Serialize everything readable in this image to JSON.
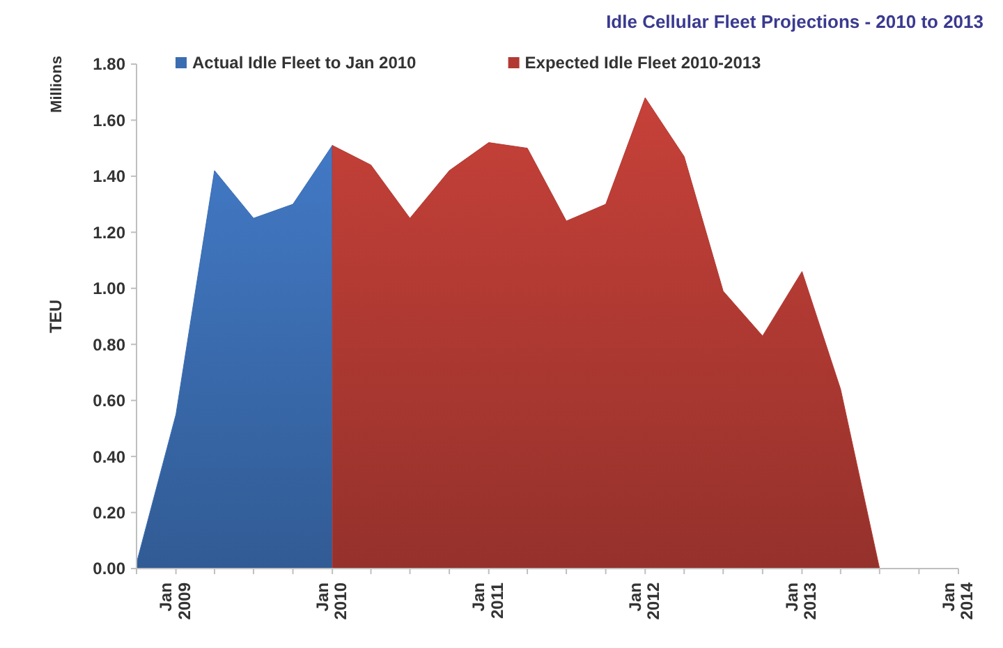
{
  "chart_data": {
    "type": "area",
    "title": "Idle Cellular Fleet Projections - 2010 to 2013",
    "ylabel": "TEU",
    "annotations": [
      "Millions"
    ],
    "series": [
      {
        "name": "Actual Idle Fleet to Jan 2010",
        "color": "#3b6db1",
        "x": [
          "2008-10",
          "2009-01",
          "2009-04",
          "2009-07",
          "2009-10",
          "2010-01"
        ],
        "values": [
          0.02,
          0.55,
          1.42,
          1.25,
          1.3,
          1.51
        ]
      },
      {
        "name": "Expected Idle Fleet 2010-2013",
        "color": "#b23a33",
        "x": [
          "2010-01",
          "2010-04",
          "2010-07",
          "2010-10",
          "2011-01",
          "2011-04",
          "2011-07",
          "2011-10",
          "2012-01",
          "2012-04",
          "2012-07",
          "2012-10",
          "2013-01",
          "2013-04",
          "2013-07"
        ],
        "values": [
          1.51,
          1.44,
          1.25,
          1.42,
          1.52,
          1.5,
          1.24,
          1.3,
          1.68,
          1.47,
          0.99,
          0.83,
          1.06,
          0.64,
          0.0
        ]
      }
    ],
    "xlim": [
      "2008-10",
      "2014-01"
    ],
    "xticks": [
      {
        "value": "2008-10",
        "label": null
      },
      {
        "value": "2009-01",
        "label": "Jan 2009"
      },
      {
        "value": "2009-04",
        "label": null
      },
      {
        "value": "2009-07",
        "label": null
      },
      {
        "value": "2009-10",
        "label": null
      },
      {
        "value": "2010-01",
        "label": "Jan 2010"
      },
      {
        "value": "2010-04",
        "label": null
      },
      {
        "value": "2010-07",
        "label": null
      },
      {
        "value": "2010-10",
        "label": null
      },
      {
        "value": "2011-01",
        "label": "Jan 2011"
      },
      {
        "value": "2011-04",
        "label": null
      },
      {
        "value": "2011-07",
        "label": null
      },
      {
        "value": "2011-10",
        "label": null
      },
      {
        "value": "2012-01",
        "label": "Jan 2012"
      },
      {
        "value": "2012-04",
        "label": null
      },
      {
        "value": "2012-07",
        "label": null
      },
      {
        "value": "2012-10",
        "label": null
      },
      {
        "value": "2013-01",
        "label": "Jan 2013"
      },
      {
        "value": "2013-04",
        "label": null
      },
      {
        "value": "2013-07",
        "label": null
      },
      {
        "value": "2013-10",
        "label": null
      },
      {
        "value": "2014-01",
        "label": "Jan 2014"
      }
    ],
    "ylim": [
      0,
      1.8
    ],
    "yticks": [
      {
        "value": 0,
        "label": "0.00"
      },
      {
        "value": 0.2,
        "label": "0.20"
      },
      {
        "value": 0.4,
        "label": "0.40"
      },
      {
        "value": 0.6,
        "label": "0.60"
      },
      {
        "value": 0.8,
        "label": "0.80"
      },
      {
        "value": 1,
        "label": "1.00"
      },
      {
        "value": 1.2,
        "label": "1.20"
      },
      {
        "value": 1.4,
        "label": "1.40"
      },
      {
        "value": 1.6,
        "label": "1.60"
      },
      {
        "value": 1.8,
        "label": "1.80"
      }
    ],
    "grid": false,
    "legend": "top"
  }
}
